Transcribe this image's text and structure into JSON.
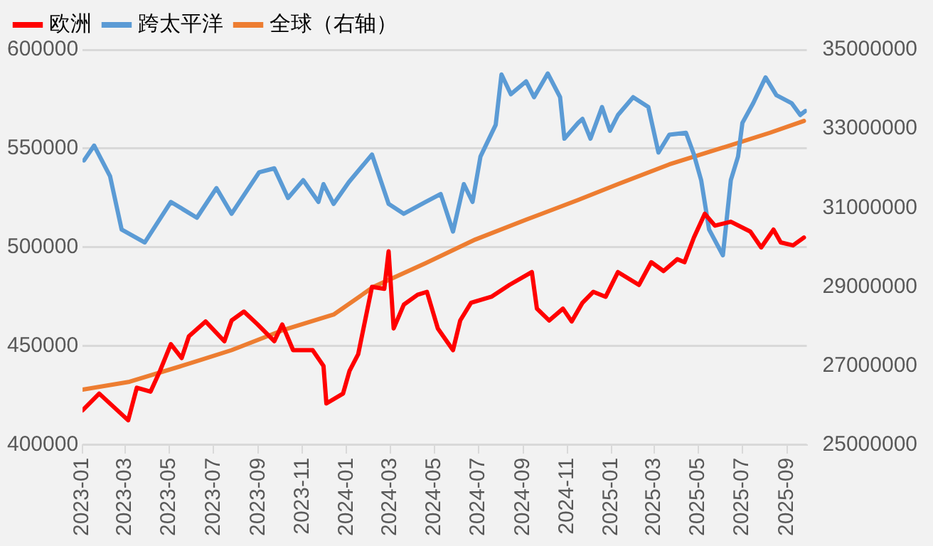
{
  "chart_data": {
    "type": "line",
    "xlim": [
      "2023-01-01",
      "2025-09-28"
    ],
    "xticks": [
      "2023-01",
      "2023-03",
      "2023-05",
      "2023-07",
      "2023-09",
      "2023-11",
      "2024-01",
      "2024-03",
      "2024-05",
      "2024-07",
      "2024-09",
      "2024-11",
      "2025-01",
      "2025-03",
      "2025-05",
      "2025-07",
      "2025-09"
    ],
    "ylim": [
      400000,
      600000
    ],
    "yticks": [
      400000,
      450000,
      500000,
      550000,
      600000
    ],
    "y2lim": [
      25000000,
      35000000
    ],
    "y2ticks": [
      25000000,
      27000000,
      29000000,
      31000000,
      33000000,
      35000000
    ],
    "grid": "y",
    "legend": "top",
    "marker": "none",
    "line_style": "solid",
    "series": [
      {
        "name": "欧洲",
        "color": "#ff0000",
        "x": [
          "2023-01-01",
          "2023-01-24",
          "2023-03-05",
          "2023-03-17",
          "2023-04-05",
          "2023-04-18",
          "2023-05-03",
          "2023-05-18",
          "2023-05-28",
          "2023-06-20",
          "2023-07-16",
          "2023-07-26",
          "2023-08-12",
          "2023-08-31",
          "2023-09-23",
          "2023-10-04",
          "2023-10-19",
          "2023-11-15",
          "2023-11-30",
          "2023-12-04",
          "2023-12-27",
          "2024-01-05",
          "2024-01-17",
          "2024-02-05",
          "2024-02-22",
          "2024-02-28",
          "2024-03-06",
          "2024-03-20",
          "2024-04-08",
          "2024-04-21",
          "2024-05-06",
          "2024-05-27",
          "2024-06-06",
          "2024-06-21",
          "2024-07-19",
          "2024-08-13",
          "2024-09-13",
          "2024-09-20",
          "2024-10-07",
          "2024-10-26",
          "2024-11-07",
          "2024-11-22",
          "2024-12-07",
          "2024-12-24",
          "2025-01-10",
          "2025-02-08",
          "2025-02-25",
          "2025-03-14",
          "2025-04-02",
          "2025-04-12",
          "2025-04-25",
          "2025-05-10",
          "2025-05-24",
          "2025-06-15",
          "2025-07-12",
          "2025-07-27",
          "2025-08-13",
          "2025-08-23",
          "2025-09-09",
          "2025-09-24"
        ],
        "values": [
          417500,
          426000,
          412500,
          429000,
          427000,
          437500,
          451000,
          444000,
          455000,
          462500,
          452500,
          463000,
          467500,
          461000,
          452500,
          461000,
          448000,
          448000,
          440000,
          421000,
          426000,
          437500,
          446000,
          480000,
          479000,
          498000,
          459000,
          471000,
          476000,
          477500,
          459000,
          448000,
          463000,
          472000,
          475000,
          481000,
          487500,
          469000,
          463000,
          469000,
          462500,
          472000,
          477500,
          475000,
          487500,
          481000,
          492500,
          488000,
          494000,
          492500,
          505000,
          517000,
          511000,
          513000,
          508000,
          500000,
          509000,
          502500,
          501000,
          505000
        ]
      },
      {
        "name": "跨太平洋",
        "color": "#5b9bd5",
        "x": [
          "2023-01-03",
          "2023-01-17",
          "2023-02-08",
          "2023-02-24",
          "2023-03-28",
          "2023-05-03",
          "2023-06-08",
          "2023-07-05",
          "2023-07-26",
          "2023-09-02",
          "2023-09-23",
          "2023-10-12",
          "2023-11-02",
          "2023-11-23",
          "2023-11-30",
          "2023-12-14",
          "2024-01-04",
          "2024-02-05",
          "2024-02-28",
          "2024-03-20",
          "2024-04-19",
          "2024-05-10",
          "2024-05-27",
          "2024-06-11",
          "2024-06-23",
          "2024-07-04",
          "2024-07-25",
          "2024-08-02",
          "2024-08-15",
          "2024-09-05",
          "2024-09-16",
          "2024-10-05",
          "2024-10-22",
          "2024-10-28",
          "2024-11-16",
          "2024-11-22",
          "2024-12-03",
          "2024-12-19",
          "2024-12-30",
          "2025-01-10",
          "2025-01-31",
          "2025-02-21",
          "2025-03-07",
          "2025-03-22",
          "2025-04-14",
          "2025-04-25",
          "2025-05-05",
          "2025-05-16",
          "2025-06-04",
          "2025-06-15",
          "2025-06-25",
          "2025-07-01",
          "2025-07-16",
          "2025-08-02",
          "2025-08-17",
          "2025-09-07",
          "2025-09-19",
          "2025-09-26"
        ],
        "values": [
          544000,
          551500,
          536000,
          509000,
          502500,
          523000,
          515000,
          530000,
          517000,
          538000,
          540000,
          525000,
          534000,
          523000,
          532000,
          522000,
          533000,
          547000,
          522000,
          517000,
          523000,
          527000,
          508000,
          532000,
          523000,
          546000,
          562000,
          587500,
          577500,
          584000,
          576000,
          588000,
          576000,
          555000,
          563000,
          565000,
          555000,
          571000,
          559000,
          567000,
          576000,
          571000,
          548000,
          557000,
          558000,
          547000,
          534000,
          509000,
          496000,
          534000,
          546000,
          563000,
          573000,
          586000,
          577000,
          573000,
          567000,
          569000
        ]
      },
      {
        "name": "全球（右轴）",
        "color": "#ed7d31",
        "axis": "y2",
        "x": [
          "2023-01-01",
          "2023-03-07",
          "2023-05-18",
          "2023-07-26",
          "2023-10-04",
          "2023-12-14",
          "2024-02-07",
          "2024-04-19",
          "2024-06-27",
          "2024-09-05",
          "2024-11-16",
          "2025-01-10",
          "2025-03-22",
          "2025-05-31",
          "2025-08-08",
          "2025-09-24"
        ],
        "values": [
          26400000,
          26600000,
          27000000,
          27400000,
          27900000,
          28300000,
          29000000,
          29600000,
          30200000,
          30700000,
          31200000,
          31600000,
          32100000,
          32500000,
          32900000,
          33200000
        ]
      }
    ]
  }
}
